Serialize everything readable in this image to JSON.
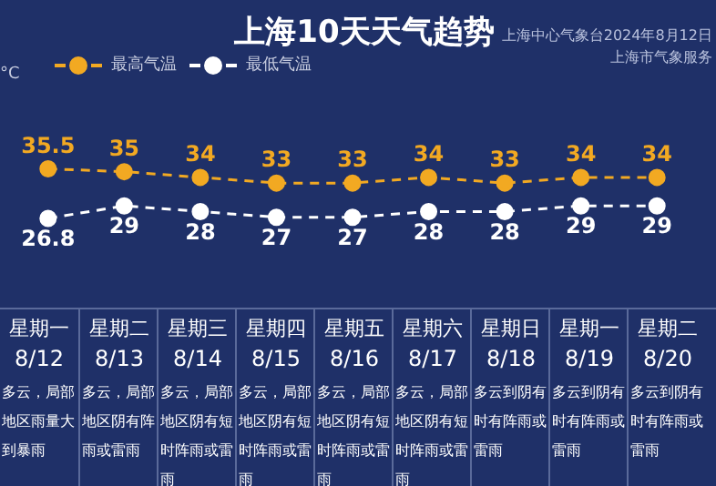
{
  "chart_data": {
    "type": "line",
    "title": "上海10天天气趋势",
    "categories": [
      "8/12",
      "8/13",
      "8/14",
      "8/15",
      "8/16",
      "8/17",
      "8/18",
      "8/19",
      "8/20"
    ],
    "series": [
      {
        "name": "最高气温",
        "color": "#f2a922",
        "values": [
          35.5,
          35,
          34,
          33,
          33,
          34,
          33,
          34,
          34
        ]
      },
      {
        "name": "最低气温",
        "color": "#ffffff",
        "values": [
          26.8,
          29,
          28,
          27,
          27,
          28,
          28,
          29,
          29
        ]
      }
    ],
    "data_labels": true,
    "legend": "top left",
    "marker": "circle",
    "line_style": "dashed",
    "grid": false,
    "annotations": [
      "上海中心气象台2024年8月12日",
      "上海市气象服务",
      "°C",
      "星期一",
      "多云，局部地区雨量大到暴雨",
      "星期二",
      "多云，局部地区阴有阵雨或雷雨",
      "星期三",
      "多云，局部地区阴有短时阵雨或雷雨",
      "星期四",
      "多云，局部地区阴有短时阵雨或雷雨",
      "星期五",
      "多云，局部地区阴有短时阵雨或雷雨",
      "星期六",
      "多云，局部地区阴有短时阵雨或雷雨",
      "星期日",
      "多云到阴有时有阵雨或雷雨",
      "星期一",
      "多云到阴有时有阵雨或雷雨",
      "星期二",
      "多云到阴有时有阵雨或雷雨"
    ]
  }
}
